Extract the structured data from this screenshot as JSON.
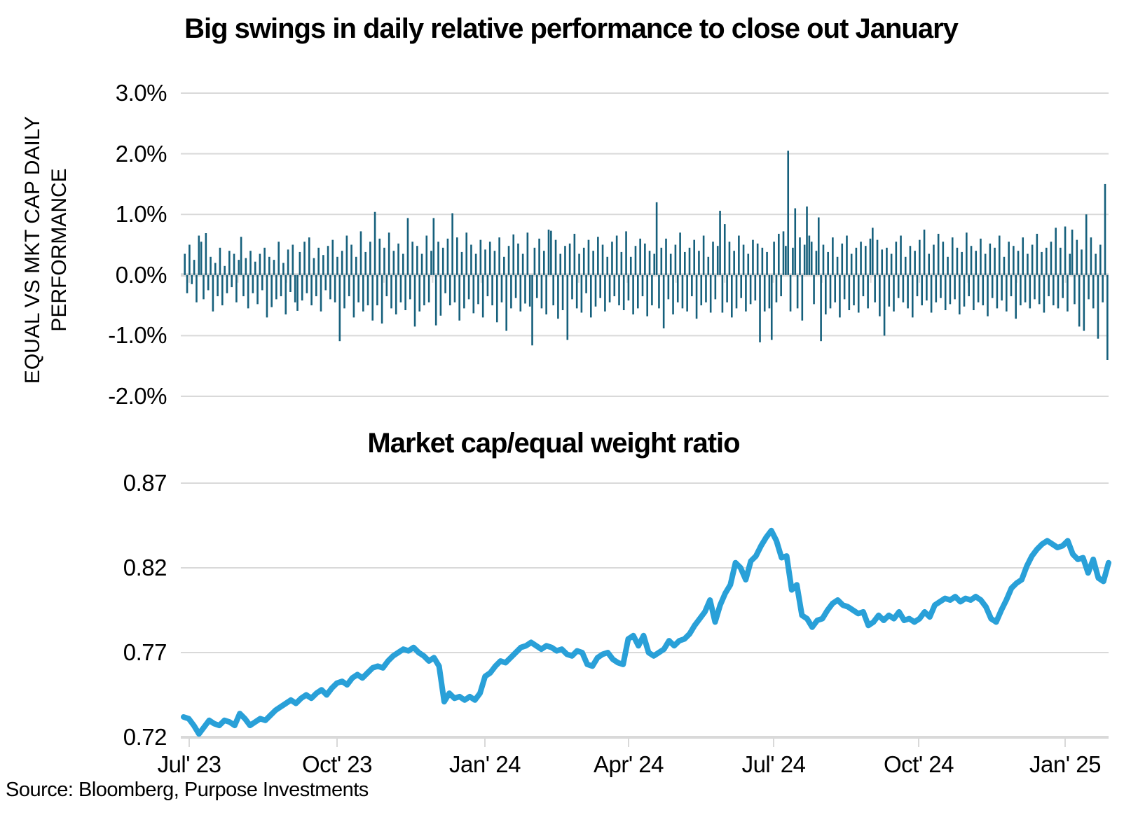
{
  "source_note": "Source: Bloomberg, Purpose Investments",
  "colors": {
    "grid": "#D9D9D9",
    "bar": "#16607C",
    "line": "#29A0D8",
    "text": "#000000",
    "background": "#FFFFFF"
  },
  "chart_data": [
    {
      "type": "bar",
      "title": "Big swings in daily relative performance to close out January",
      "ylabel": "EQUAL VS MKT CAP DAILY PERFORMANCE",
      "unit": "percent",
      "y_tick_labels": [
        "3.0%",
        "2.0%",
        "1.0%",
        "0.0%",
        "-1.0%",
        "-2.0%"
      ],
      "y_tick_values": [
        3,
        2,
        1,
        0,
        -1,
        -2
      ],
      "ylim": [
        -2.45,
        3.0
      ],
      "x_range": [
        "Jul 2023",
        "Jan 2025"
      ],
      "x_minor_ticks": "monthly",
      "grid": true,
      "notable_values": {
        "max": 2.05,
        "min": -1.4,
        "last_two_days": [
          1.5,
          -1.4
        ]
      },
      "values": [
        0.35,
        -0.3,
        0.5,
        -0.15,
        0.25,
        -0.45,
        0.65,
        0.55,
        -0.4,
        0.69,
        -0.25,
        0.3,
        -0.6,
        0.2,
        -0.35,
        0.45,
        -0.5,
        0.15,
        -0.3,
        0.4,
        -0.2,
        0.35,
        -0.45,
        0.25,
        0.63,
        -0.35,
        0.28,
        -0.55,
        0.4,
        -0.3,
        0.22,
        -0.48,
        0.35,
        -0.25,
        0.45,
        -0.7,
        0.3,
        -0.53,
        0.25,
        -0.4,
        0.55,
        -0.35,
        0.2,
        -0.65,
        0.42,
        -0.28,
        0.5,
        -0.45,
        -0.59,
        0.38,
        -0.42,
        0.55,
        -0.3,
        0.62,
        -0.5,
        0.28,
        -0.35,
        0.45,
        -0.6,
        0.33,
        -0.25,
        0.48,
        -0.4,
        0.58,
        -0.45,
        0.3,
        -1.09,
        0.4,
        -0.55,
        0.65,
        -0.35,
        0.5,
        -0.7,
        0.3,
        -0.45,
        0.72,
        -0.6,
        0.38,
        -0.5,
        0.55,
        -0.75,
        1.04,
        -0.5,
        0.6,
        -0.8,
        0.45,
        -0.35,
        0.7,
        -0.55,
        0.4,
        -0.65,
        0.52,
        -0.45,
        0.35,
        -0.58,
        0.94,
        -0.4,
        0.55,
        -0.85,
        0.48,
        -0.6,
        0.35,
        -0.5,
        0.65,
        -0.45,
        0.4,
        0.94,
        -0.83,
        0.55,
        -0.67,
        0.45,
        -0.3,
        0.6,
        -0.5,
        1.02,
        -0.45,
        0.62,
        -0.75,
        0.38,
        -0.55,
        0.7,
        -0.4,
        0.5,
        -0.63,
        0.35,
        -0.48,
        0.58,
        -0.7,
        0.42,
        -0.35,
        0.55,
        -0.5,
        0.4,
        -0.78,
        0.62,
        -0.45,
        0.3,
        -0.92,
        0.48,
        -0.55,
        0.67,
        -0.38,
        0.52,
        -0.6,
        0.35,
        -0.47,
        0.7,
        -0.52,
        -1.16,
        0.45,
        -0.38,
        0.6,
        -0.55,
        0.4,
        -0.65,
        0.75,
        0.73,
        -0.5,
        0.58,
        -0.72,
        0.35,
        -0.58,
        0.48,
        -1.07,
        0.52,
        -0.4,
        0.68,
        -0.55,
        0.35,
        -0.62,
        0.45,
        -0.3,
        0.58,
        -0.7,
        0.4,
        -0.52,
        0.63,
        -0.38,
        0.5,
        -0.6,
        0.3,
        -0.45,
        0.55,
        -0.35,
        0.65,
        -0.5,
        0.38,
        -0.58,
        0.72,
        -0.42,
        0.3,
        -0.65,
        0.48,
        -0.55,
        0.6,
        -0.35,
        0.52,
        -0.68,
        0.4,
        -0.5,
        0.35,
        1.2,
        -0.55,
        0.45,
        -0.88,
        0.6,
        -0.4,
        0.35,
        -0.65,
        0.5,
        -0.45,
        0.7,
        -0.55,
        0.38,
        -0.6,
        0.45,
        -0.35,
        0.58,
        -0.72,
        0.4,
        -0.5,
        0.65,
        -0.45,
        0.3,
        -0.62,
        0.55,
        -0.4,
        0.48,
        1.06,
        -0.62,
        0.84,
        -0.45,
        0.55,
        -0.7,
        0.4,
        -0.55,
        0.65,
        -0.38,
        0.5,
        -0.6,
        0.35,
        -0.48,
        0.58,
        -0.42,
        0.52,
        -1.11,
        0.45,
        -0.6,
        0.38,
        -0.55,
        -1.07,
        0.55,
        -0.45,
        0.68,
        -0.35,
        0.72,
        0.48,
        2.05,
        -0.6,
        0.45,
        1.1,
        -0.55,
        0.62,
        -0.75,
        0.5,
        1.13,
        0.65,
        0.55,
        -0.48,
        0.4,
        0.95,
        -1.09,
        0.5,
        -0.65,
        0.38,
        -0.55,
        0.62,
        -0.45,
        0.3,
        -0.7,
        0.52,
        -0.4,
        0.65,
        -0.58,
        0.35,
        -0.5,
        0.45,
        -0.62,
        0.55,
        -0.35,
        0.48,
        -0.55,
        0.6,
        0.78,
        -0.45,
        0.58,
        -0.68,
        0.42,
        -1.0,
        0.45,
        -0.52,
        0.35,
        -0.6,
        0.55,
        -0.38,
        0.65,
        -0.45,
        0.3,
        -0.55,
        0.48,
        -0.7,
        0.4,
        -0.35,
        0.58,
        -0.5,
        0.75,
        -0.42,
        0.35,
        -0.62,
        0.5,
        -0.45,
        0.68,
        -0.38,
        0.55,
        -0.58,
        0.3,
        -0.48,
        0.62,
        -0.4,
        0.45,
        -0.65,
        0.38,
        -0.52,
        0.7,
        -0.35,
        0.48,
        -0.58,
        0.4,
        -0.45,
        0.6,
        -0.5,
        0.35,
        -0.68,
        0.52,
        -0.38,
        0.45,
        -0.55,
        0.65,
        -0.42,
        0.3,
        -0.6,
        0.55,
        -0.35,
        0.48,
        -0.72,
        0.4,
        -0.5,
        0.62,
        -0.45,
        0.35,
        -0.55,
        0.5,
        -0.4,
        0.68,
        -0.48,
        0.38,
        -0.62,
        0.45,
        -0.35,
        0.55,
        -0.5,
        0.78,
        -0.55,
        0.45,
        -0.38,
        0.8,
        -0.6,
        0.35,
        0.75,
        -0.48,
        0.58,
        -0.85,
        0.42,
        -0.92,
        1.0,
        -0.4,
        0.62,
        -0.55,
        0.35,
        -1.05,
        0.5,
        -0.45,
        1.5,
        -1.4
      ]
    },
    {
      "type": "line",
      "title": "Market cap/equal weight ratio",
      "y_tick_labels": [
        "0.87",
        "0.82",
        "0.77",
        "0.72"
      ],
      "y_tick_values": [
        0.87,
        0.82,
        0.77,
        0.72
      ],
      "ylim": [
        0.72,
        0.87
      ],
      "x_tick_labels": [
        "Jul' 23",
        "Oct' 23",
        "Jan' 24",
        "Apr' 24",
        "Jul' 24",
        "Oct' 24",
        "Jan' 25"
      ],
      "grid": true,
      "notable_values": {
        "start": 0.732,
        "low": 0.721,
        "peak_jul_2024": 0.842,
        "peak_jan_2025": 0.836,
        "end": 0.823
      },
      "values": [
        0.732,
        0.731,
        0.727,
        0.722,
        0.726,
        0.73,
        0.728,
        0.727,
        0.73,
        0.729,
        0.727,
        0.734,
        0.731,
        0.727,
        0.729,
        0.731,
        0.73,
        0.733,
        0.736,
        0.738,
        0.74,
        0.742,
        0.74,
        0.743,
        0.745,
        0.743,
        0.746,
        0.748,
        0.745,
        0.749,
        0.752,
        0.753,
        0.751,
        0.755,
        0.757,
        0.755,
        0.758,
        0.761,
        0.762,
        0.761,
        0.765,
        0.768,
        0.77,
        0.772,
        0.771,
        0.773,
        0.77,
        0.768,
        0.765,
        0.767,
        0.762,
        0.741,
        0.746,
        0.743,
        0.744,
        0.742,
        0.744,
        0.742,
        0.746,
        0.756,
        0.758,
        0.762,
        0.765,
        0.764,
        0.767,
        0.77,
        0.773,
        0.774,
        0.776,
        0.774,
        0.772,
        0.774,
        0.773,
        0.771,
        0.772,
        0.769,
        0.768,
        0.771,
        0.77,
        0.763,
        0.762,
        0.767,
        0.769,
        0.77,
        0.766,
        0.764,
        0.763,
        0.778,
        0.78,
        0.774,
        0.78,
        0.77,
        0.768,
        0.77,
        0.772,
        0.777,
        0.774,
        0.777,
        0.778,
        0.781,
        0.786,
        0.79,
        0.794,
        0.801,
        0.788,
        0.798,
        0.805,
        0.81,
        0.823,
        0.82,
        0.813,
        0.824,
        0.827,
        0.833,
        0.838,
        0.842,
        0.836,
        0.826,
        0.827,
        0.807,
        0.81,
        0.792,
        0.79,
        0.785,
        0.789,
        0.79,
        0.795,
        0.799,
        0.801,
        0.798,
        0.797,
        0.795,
        0.793,
        0.794,
        0.786,
        0.788,
        0.792,
        0.789,
        0.792,
        0.79,
        0.794,
        0.789,
        0.79,
        0.788,
        0.79,
        0.794,
        0.791,
        0.798,
        0.8,
        0.802,
        0.801,
        0.803,
        0.8,
        0.802,
        0.801,
        0.803,
        0.801,
        0.797,
        0.79,
        0.788,
        0.795,
        0.801,
        0.808,
        0.811,
        0.813,
        0.821,
        0.827,
        0.831,
        0.834,
        0.836,
        0.834,
        0.832,
        0.833,
        0.836,
        0.828,
        0.825,
        0.826,
        0.817,
        0.825,
        0.814,
        0.812,
        0.823
      ]
    }
  ]
}
